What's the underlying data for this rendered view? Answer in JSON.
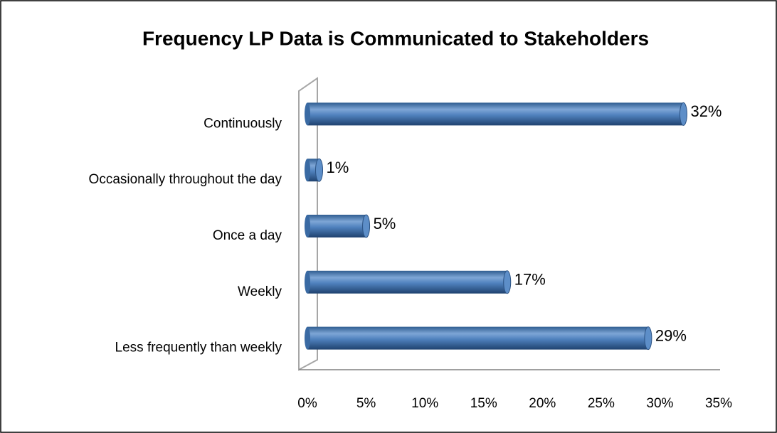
{
  "chart_data": {
    "type": "bar",
    "orientation": "horizontal",
    "title": "Frequency LP Data is Communicated to Stakeholders",
    "categories": [
      "Continuously",
      "Occasionally throughout the day",
      "Once a day",
      "Weekly",
      "Less frequently than weekly"
    ],
    "values": [
      32,
      1,
      5,
      17,
      29
    ],
    "value_labels": [
      "32%",
      "1%",
      "5%",
      "17%",
      "29%"
    ],
    "color": "#4f81bd",
    "xlim": [
      0,
      35
    ],
    "xticks": [
      {
        "value": 0,
        "label": "0%"
      },
      {
        "value": 5,
        "label": "5%"
      },
      {
        "value": 10,
        "label": "10%"
      },
      {
        "value": 15,
        "label": "15%"
      },
      {
        "value": 20,
        "label": "20%"
      },
      {
        "value": 25,
        "label": "25%"
      },
      {
        "value": 30,
        "label": "30%"
      },
      {
        "value": 35,
        "label": "35%"
      }
    ],
    "grid": false
  }
}
